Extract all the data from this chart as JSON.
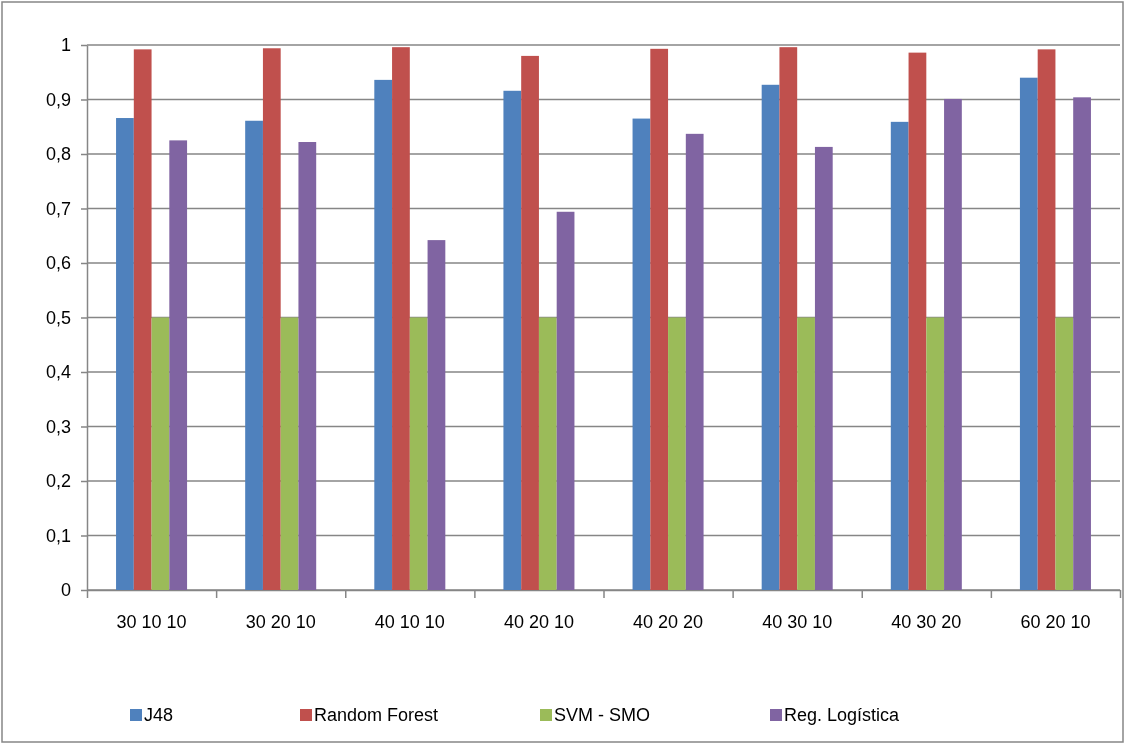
{
  "chart_data": {
    "type": "bar",
    "categories": [
      "30 10 10",
      "30 20 10",
      "40 10 10",
      "40 20 10",
      "40 20 20",
      "40 30 10",
      "40 30 20",
      "60 20 10"
    ],
    "series": [
      {
        "name": "J48",
        "color": "#4f81bd",
        "values": [
          0.866,
          0.861,
          0.936,
          0.916,
          0.865,
          0.927,
          0.859,
          0.94
        ]
      },
      {
        "name": "Random Forest",
        "color": "#c0504d",
        "values": [
          0.992,
          0.994,
          0.996,
          0.98,
          0.993,
          0.996,
          0.986,
          0.992
        ]
      },
      {
        "name": "SVM - SMO",
        "color": "#9bbb59",
        "values": [
          0.5,
          0.5,
          0.5,
          0.5,
          0.5,
          0.5,
          0.5,
          0.5
        ]
      },
      {
        "name": "Reg. Logística",
        "color": "#8064a2",
        "values": [
          0.825,
          0.822,
          0.642,
          0.694,
          0.837,
          0.813,
          0.901,
          0.904
        ]
      }
    ],
    "ylim": [
      0,
      1
    ],
    "yticks": [
      {
        "value": 0,
        "label": "0"
      },
      {
        "value": 0.1,
        "label": "0,1"
      },
      {
        "value": 0.2,
        "label": "0,2"
      },
      {
        "value": 0.3,
        "label": "0,3"
      },
      {
        "value": 0.4,
        "label": "0,4"
      },
      {
        "value": 0.5,
        "label": "0,5"
      },
      {
        "value": 0.6,
        "label": "0,6"
      },
      {
        "value": 0.7,
        "label": "0,7"
      },
      {
        "value": 0.8,
        "label": "0,8"
      },
      {
        "value": 0.9,
        "label": "0,9"
      },
      {
        "value": 1,
        "label": "1"
      }
    ],
    "grid": "y",
    "legend": "bottom"
  }
}
